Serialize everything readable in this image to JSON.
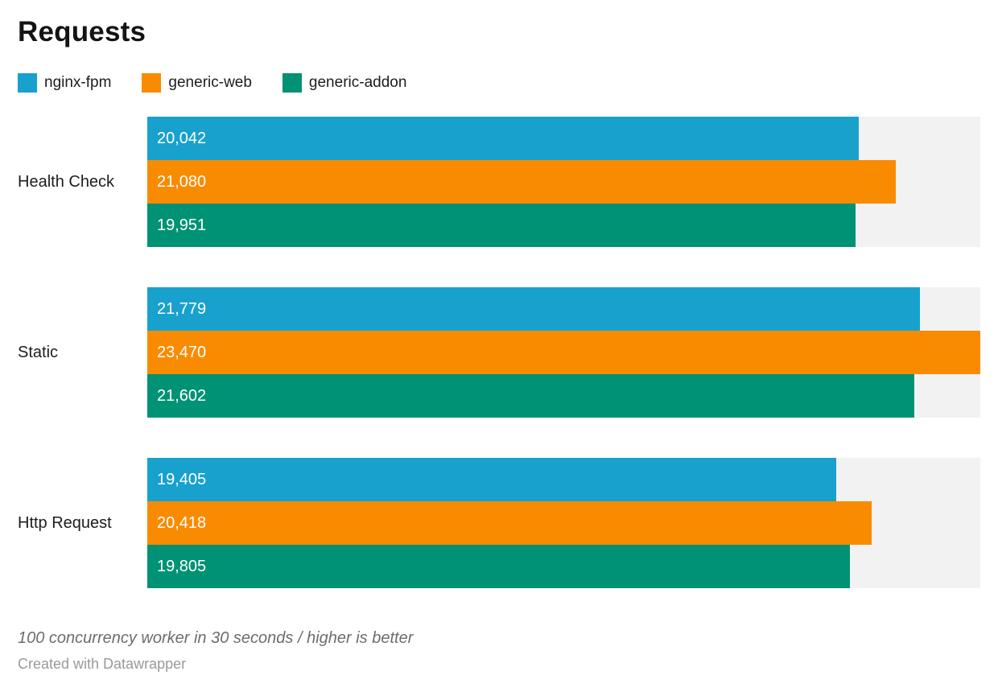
{
  "title": "Requests",
  "chart_data": {
    "type": "bar",
    "orientation": "horizontal",
    "title": "Requests",
    "xlabel": "",
    "ylabel": "",
    "xlim": [
      0,
      23470
    ],
    "grid": false,
    "legend_position": "top",
    "track_color": "#f2f2f2",
    "categories": [
      "Health Check",
      "Static",
      "Http Request"
    ],
    "series": [
      {
        "name": "nginx-fpm",
        "color": "#18a1cd",
        "values": [
          20042,
          21779,
          19405
        ],
        "labels": [
          "20,042",
          "21,779",
          "19,405"
        ]
      },
      {
        "name": "generic-web",
        "color": "#f98b00",
        "values": [
          21080,
          23470,
          20418
        ],
        "labels": [
          "21,080",
          "23,470",
          "20,418"
        ]
      },
      {
        "name": "generic-addon",
        "color": "#009274",
        "values": [
          19951,
          21602,
          19805
        ],
        "labels": [
          "19,951",
          "21,602",
          "19,805"
        ]
      }
    ]
  },
  "footer": {
    "note": "100 concurrency worker in 30 seconds / higher is better",
    "credit": "Created with Datawrapper"
  }
}
